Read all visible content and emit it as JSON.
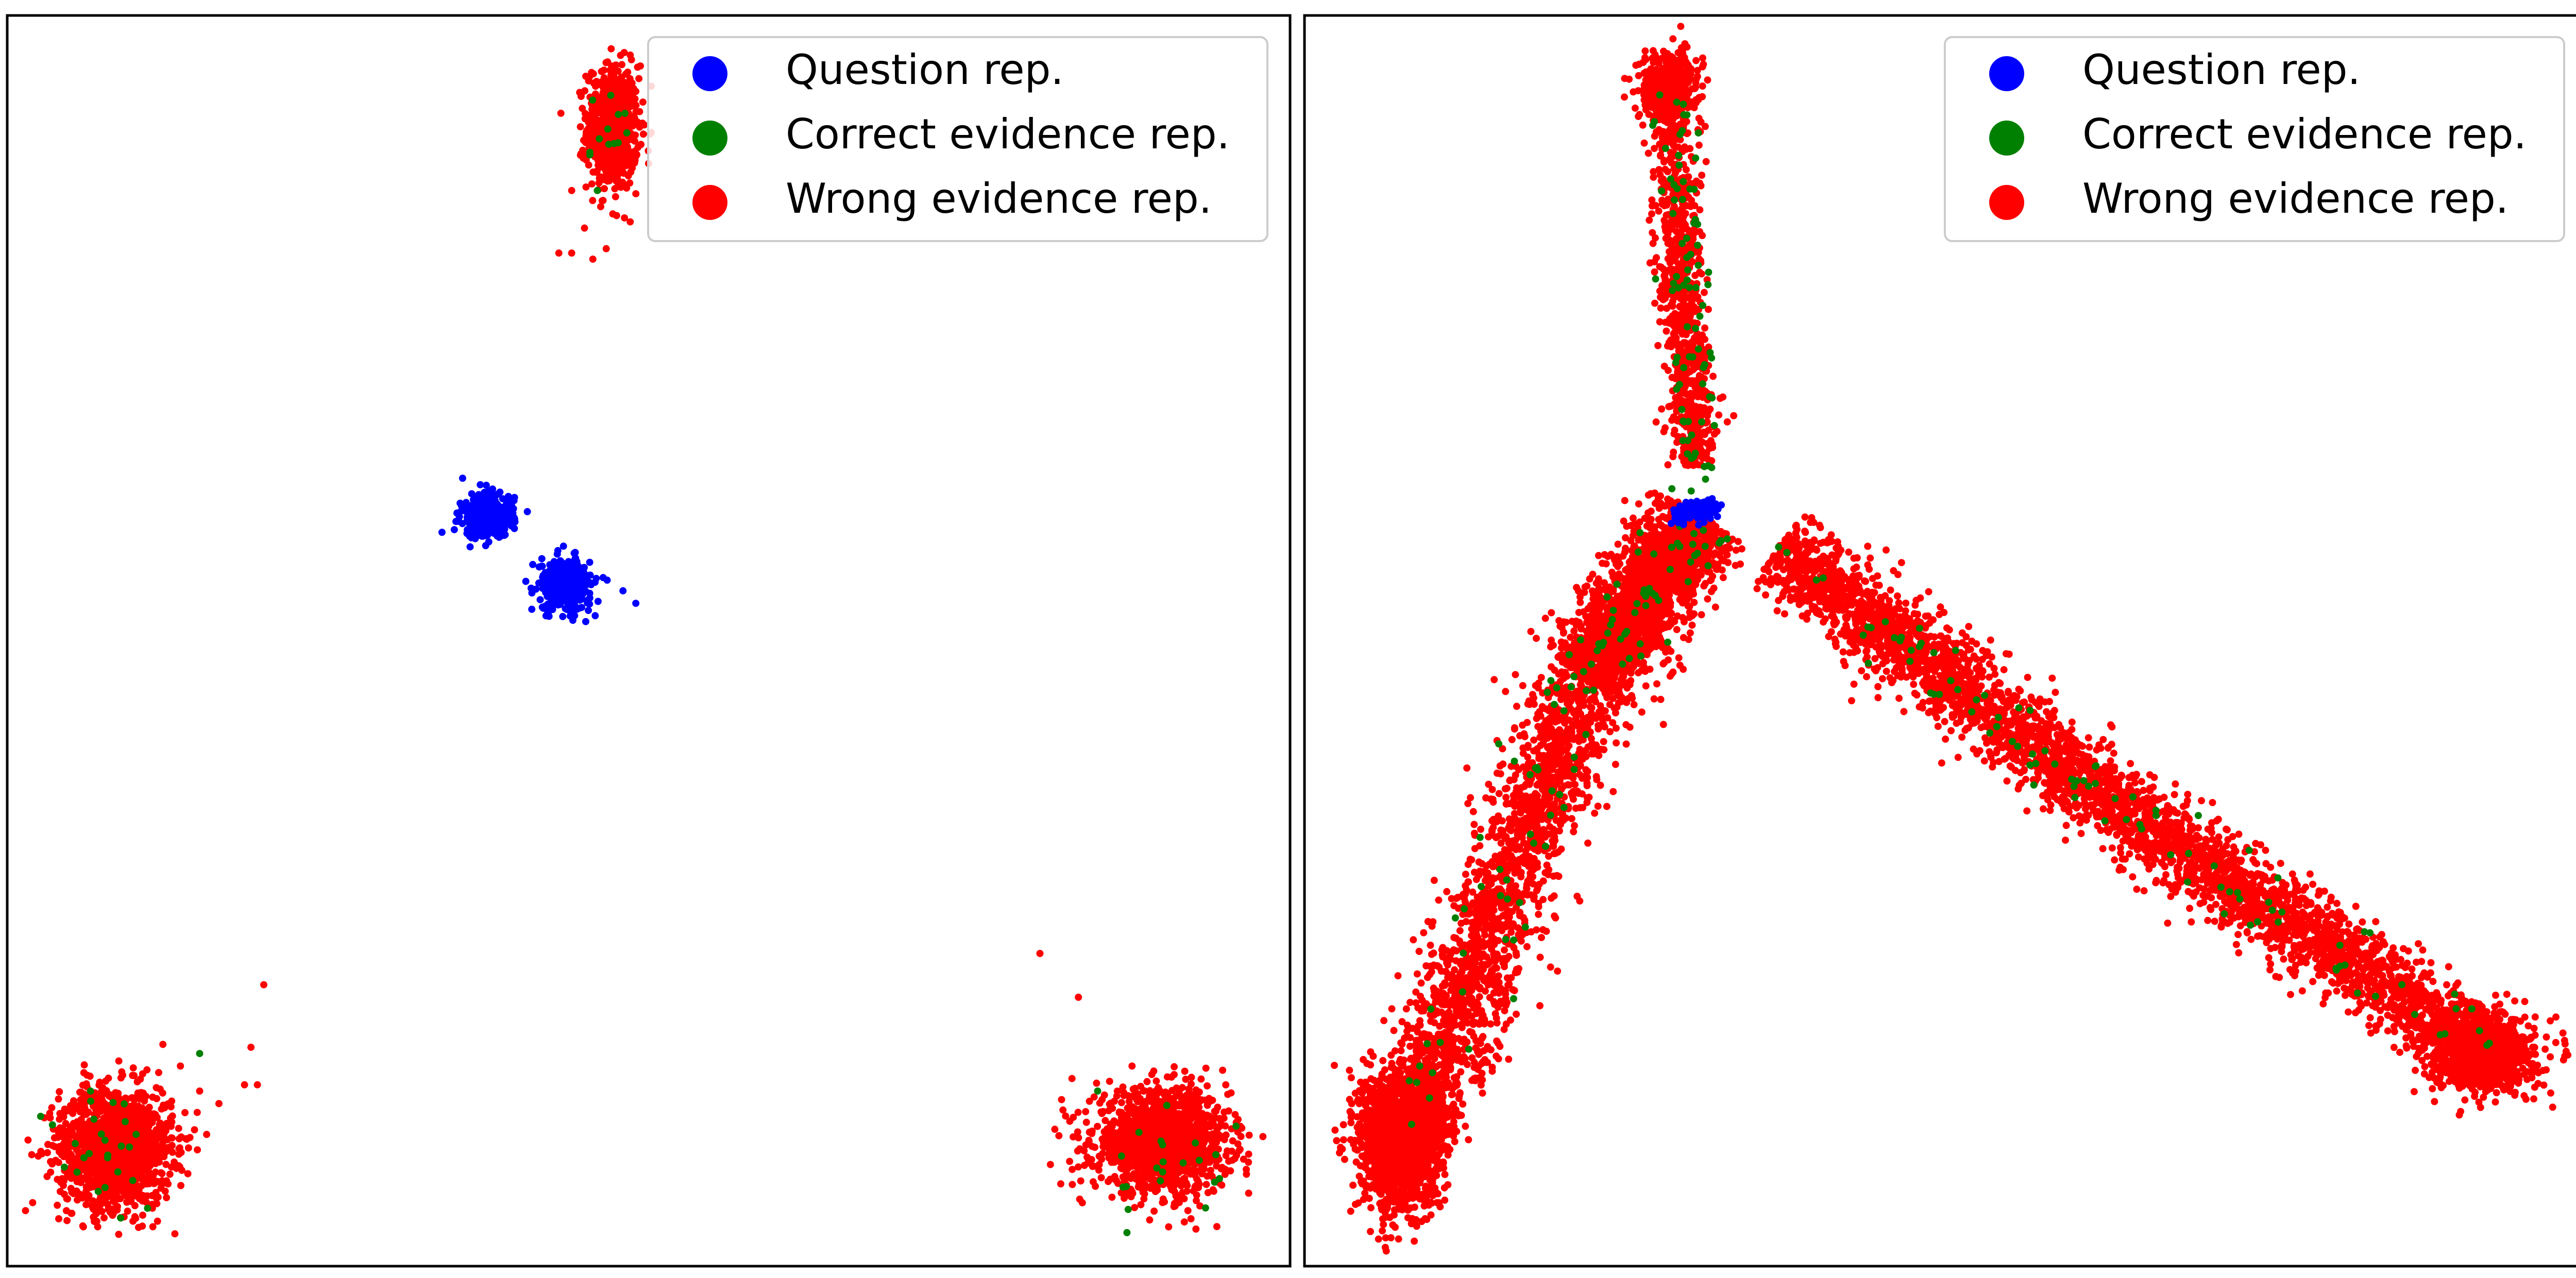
{
  "chart_data": [
    {
      "type": "scatter",
      "title": "",
      "xlabel": "",
      "ylabel": "",
      "axes_visible": false,
      "grid": false,
      "legend_position": "top-right",
      "xlim": [
        0,
        100
      ],
      "ylim": [
        0,
        100
      ],
      "series": [
        {
          "name": "Question rep.",
          "color": "#0000ff",
          "clusters": [
            {
              "cx": 37.5,
              "cy": 60.0,
              "sx": 1.0,
              "sy": 0.9,
              "n": 350
            },
            {
              "cx": 43.5,
              "cy": 54.5,
              "sx": 1.0,
              "sy": 1.0,
              "n": 420
            }
          ],
          "outliers": [
            [
              35.5,
              63.0
            ],
            [
              48.0,
              54.0
            ],
            [
              49.0,
              53.0
            ],
            [
              42.0,
              52.0
            ]
          ]
        },
        {
          "name": "Correct evidence rep.",
          "color": "#008000",
          "clusters": [
            {
              "cx": 47.5,
              "cy": 90.5,
              "sx": 1.0,
              "sy": 2.0,
              "n": 12
            },
            {
              "cx": 8.0,
              "cy": 9.5,
              "sx": 2.5,
              "sy": 2.5,
              "n": 25
            },
            {
              "cx": 90.5,
              "cy": 8.0,
              "sx": 2.5,
              "sy": 2.0,
              "n": 20
            }
          ],
          "outliers": [
            [
              15.0,
              17.0
            ],
            [
              6.5,
              14.0
            ],
            [
              94.5,
              7.0
            ],
            [
              85.0,
              14.0
            ],
            [
              46.0,
              86.0
            ]
          ]
        },
        {
          "name": "Wrong evidence rep.",
          "color": "#ff0000",
          "clusters": [
            {
              "cx": 47.2,
              "cy": 91.0,
              "sx": 1.0,
              "sy": 2.5,
              "n": 700
            },
            {
              "cx": 8.5,
              "cy": 9.5,
              "sx": 2.2,
              "sy": 2.4,
              "n": 1400
            },
            {
              "cx": 90.0,
              "cy": 10.0,
              "sx": 2.6,
              "sy": 2.0,
              "n": 1400
            }
          ],
          "outliers": [
            [
              44.0,
              86.0
            ],
            [
              43.0,
              81.0
            ],
            [
              44.0,
              81.0
            ],
            [
              45.0,
              83.0
            ],
            [
              20.0,
              22.5
            ],
            [
              19.0,
              17.5
            ],
            [
              18.5,
              14.5
            ],
            [
              19.5,
              14.5
            ],
            [
              80.5,
              25.0
            ],
            [
              83.5,
              21.5
            ],
            [
              83.0,
              15.0
            ],
            [
              15.0,
              14.0
            ],
            [
              16.5,
              13.0
            ],
            [
              13.5,
              16.0
            ],
            [
              82.5,
              12.0
            ],
            [
              47.5,
              84.0
            ]
          ]
        }
      ]
    },
    {
      "type": "scatter",
      "title": "",
      "xlabel": "",
      "ylabel": "",
      "axes_visible": false,
      "grid": false,
      "legend_position": "top-right",
      "xlim": [
        0,
        100
      ],
      "ylim": [
        0,
        100
      ],
      "series": [
        {
          "name": "Question rep.",
          "color": "#0000ff",
          "clusters": [
            {
              "cx": 31.0,
              "cy": 60.5,
              "sx": 0.5,
              "sy": 0.35,
              "n": 160
            },
            {
              "cx": 29.5,
              "cy": 60.0,
              "sx": 0.3,
              "sy": 0.3,
              "n": 50
            }
          ],
          "outliers": []
        },
        {
          "name": "Correct evidence rep.",
          "color": "#008000",
          "arms": [
            {
              "path": [
                [
                  28.5,
                  95.0
                ],
                [
                  30.0,
                  78.0
                ],
                [
                  31.0,
                  62.0
                ]
              ],
              "width": 0.9,
              "n": 80
            },
            {
              "path": [
                [
                  31.0,
                  60.0
                ],
                [
                  22.0,
                  47.0
                ],
                [
                  8.0,
                  10.0
                ]
              ],
              "width": 1.6,
              "n": 100
            },
            {
              "path": [
                [
                  36.5,
                  58.0
                ],
                [
                  63.0,
                  37.0
                ],
                [
                  92.5,
                  17.0
                ]
              ],
              "width": 1.3,
              "n": 90
            }
          ],
          "outliers": [
            [
              31.0,
              67.5
            ],
            [
              31.5,
              64.0
            ],
            [
              30.5,
              65.0
            ],
            [
              32.5,
              58.0
            ],
            [
              31.5,
              56.0
            ],
            [
              37.0,
              57.5
            ],
            [
              48.0,
              51.0
            ],
            [
              69.0,
              33.0
            ],
            [
              71.0,
              32.0
            ],
            [
              22.0,
              46.0
            ]
          ]
        },
        {
          "name": "Wrong evidence rep.",
          "color": "#ff0000",
          "arms": [
            {
              "path": [
                [
                  28.5,
                  95.0
                ],
                [
                  29.5,
                  78.0
                ],
                [
                  30.5,
                  64.0
                ]
              ],
              "width": 0.9,
              "n": 900
            },
            {
              "path": [
                [
                  31.0,
                  60.0
                ],
                [
                  22.0,
                  47.0
                ],
                [
                  8.0,
                  10.0
                ]
              ],
              "width": 1.8,
              "n": 4000
            },
            {
              "path": [
                [
                  37.0,
                  57.5
                ],
                [
                  63.0,
                  37.0
                ],
                [
                  92.5,
                  17.0
                ]
              ],
              "width": 1.6,
              "n": 3800
            }
          ],
          "blobs": [
            {
              "cx": 28.5,
              "cy": 94.5,
              "sx": 1.2,
              "sy": 1.4,
              "n": 350
            },
            {
              "cx": 7.5,
              "cy": 10.0,
              "sx": 1.6,
              "sy": 2.8,
              "n": 1500
            },
            {
              "cx": 92.0,
              "cy": 17.0,
              "sx": 2.0,
              "sy": 1.5,
              "n": 900
            }
          ],
          "outliers": [
            [
              33.5,
              68.0
            ],
            [
              33.0,
              67.5
            ],
            [
              30.5,
              65.5
            ],
            [
              15.0,
              18.0
            ],
            [
              19.5,
              28.0
            ]
          ]
        }
      ]
    }
  ]
}
